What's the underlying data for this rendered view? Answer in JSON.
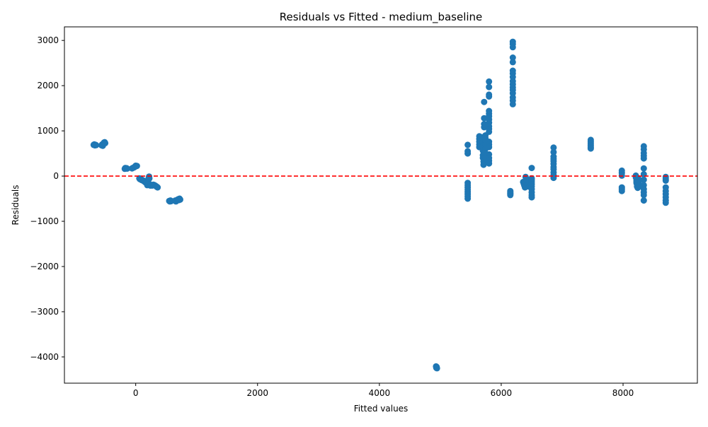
{
  "chart_data": {
    "type": "scatter",
    "title": "Residuals vs Fitted - medium_baseline",
    "xlabel": "Fitted values",
    "ylabel": "Residuals",
    "xlim": [
      -1170,
      9220
    ],
    "ylim": [
      -4580,
      3300
    ],
    "x_ticks": [
      0,
      2000,
      4000,
      6000,
      8000
    ],
    "x_tick_labels": [
      "0",
      "2000",
      "4000",
      "6000",
      "8000"
    ],
    "y_ticks": [
      -4000,
      -3000,
      -2000,
      -1000,
      0,
      1000,
      2000,
      3000
    ],
    "y_tick_labels": [
      "−4000",
      "−3000",
      "−2000",
      "−1000",
      "0",
      "1000",
      "2000",
      "3000"
    ],
    "grid": false,
    "legend": "none",
    "reference_line": {
      "y": 0,
      "color": "#ff0000",
      "style": "dashed"
    },
    "marker_color": "#1f77b4",
    "points": [
      [
        -690,
        690
      ],
      [
        -680,
        700
      ],
      [
        -670,
        680
      ],
      [
        -660,
        690
      ],
      [
        -650,
        685
      ],
      [
        -560,
        680
      ],
      [
        -550,
        700
      ],
      [
        -540,
        670
      ],
      [
        -530,
        720
      ],
      [
        -520,
        740
      ],
      [
        -510,
        750
      ],
      [
        -500,
        730
      ],
      [
        -180,
        160
      ],
      [
        -170,
        180
      ],
      [
        -160,
        170
      ],
      [
        -150,
        175
      ],
      [
        -140,
        165
      ],
      [
        -60,
        170
      ],
      [
        -50,
        180
      ],
      [
        -30,
        190
      ],
      [
        -20,
        200
      ],
      [
        -10,
        210
      ],
      [
        0,
        230
      ],
      [
        10,
        220
      ],
      [
        20,
        225
      ],
      [
        60,
        -50
      ],
      [
        70,
        -70
      ],
      [
        80,
        -60
      ],
      [
        90,
        -80
      ],
      [
        100,
        -90
      ],
      [
        110,
        -85
      ],
      [
        120,
        -100
      ],
      [
        140,
        -120
      ],
      [
        150,
        -110
      ],
      [
        160,
        -140
      ],
      [
        170,
        -150
      ],
      [
        180,
        -160
      ],
      [
        190,
        -200
      ],
      [
        200,
        -190
      ],
      [
        210,
        -150
      ],
      [
        215,
        -30
      ],
      [
        220,
        -10
      ],
      [
        225,
        -50
      ],
      [
        230,
        -180
      ],
      [
        240,
        -210
      ],
      [
        250,
        -200
      ],
      [
        270,
        -210
      ],
      [
        290,
        -190
      ],
      [
        310,
        -200
      ],
      [
        330,
        -220
      ],
      [
        340,
        -230
      ],
      [
        350,
        -240
      ],
      [
        360,
        -250
      ],
      [
        550,
        -550
      ],
      [
        560,
        -560
      ],
      [
        570,
        -540
      ],
      [
        580,
        -555
      ],
      [
        650,
        -540
      ],
      [
        660,
        -560
      ],
      [
        670,
        -550
      ],
      [
        690,
        -520
      ],
      [
        700,
        -510
      ],
      [
        710,
        -530
      ],
      [
        720,
        -500
      ],
      [
        730,
        -520
      ],
      [
        4930,
        -4210
      ],
      [
        4935,
        -4240
      ],
      [
        4940,
        -4220
      ],
      [
        4945,
        -4250
      ],
      [
        5450,
        690
      ],
      [
        5450,
        550
      ],
      [
        5450,
        500
      ],
      [
        5450,
        -150
      ],
      [
        5450,
        -200
      ],
      [
        5450,
        -250
      ],
      [
        5450,
        -300
      ],
      [
        5450,
        -350
      ],
      [
        5450,
        -400
      ],
      [
        5450,
        -450
      ],
      [
        5450,
        -500
      ],
      [
        5640,
        880
      ],
      [
        5640,
        820
      ],
      [
        5640,
        760
      ],
      [
        5640,
        700
      ],
      [
        5640,
        640
      ],
      [
        5680,
        860
      ],
      [
        5690,
        800
      ],
      [
        5700,
        740
      ],
      [
        5700,
        660
      ],
      [
        5700,
        560
      ],
      [
        5700,
        460
      ],
      [
        5700,
        400
      ],
      [
        5710,
        320
      ],
      [
        5710,
        250
      ],
      [
        5720,
        1640
      ],
      [
        5720,
        1280
      ],
      [
        5720,
        1150
      ],
      [
        5720,
        1080
      ],
      [
        5740,
        900
      ],
      [
        5740,
        840
      ],
      [
        5740,
        780
      ],
      [
        5740,
        700
      ],
      [
        5740,
        600
      ],
      [
        5740,
        500
      ],
      [
        5740,
        420
      ],
      [
        5800,
        2090
      ],
      [
        5800,
        1970
      ],
      [
        5800,
        1800
      ],
      [
        5800,
        1760
      ],
      [
        5800,
        1440
      ],
      [
        5800,
        1380
      ],
      [
        5800,
        1320
      ],
      [
        5800,
        1250
      ],
      [
        5800,
        1180
      ],
      [
        5800,
        1100
      ],
      [
        5800,
        1040
      ],
      [
        5800,
        980
      ],
      [
        5800,
        760
      ],
      [
        5800,
        700
      ],
      [
        5800,
        640
      ],
      [
        5800,
        480
      ],
      [
        5800,
        400
      ],
      [
        5800,
        340
      ],
      [
        5800,
        280
      ],
      [
        6150,
        -330
      ],
      [
        6150,
        -360
      ],
      [
        6150,
        -380
      ],
      [
        6150,
        -400
      ],
      [
        6150,
        -420
      ],
      [
        6190,
        2970
      ],
      [
        6190,
        2920
      ],
      [
        6190,
        2850
      ],
      [
        6190,
        2620
      ],
      [
        6190,
        2520
      ],
      [
        6190,
        2330
      ],
      [
        6190,
        2270
      ],
      [
        6190,
        2190
      ],
      [
        6190,
        2100
      ],
      [
        6190,
        2030
      ],
      [
        6190,
        1960
      ],
      [
        6190,
        1900
      ],
      [
        6190,
        1830
      ],
      [
        6190,
        1740
      ],
      [
        6190,
        1670
      ],
      [
        6190,
        1590
      ],
      [
        6360,
        -130
      ],
      [
        6370,
        -170
      ],
      [
        6380,
        -210
      ],
      [
        6390,
        -250
      ],
      [
        6400,
        -20
      ],
      [
        6410,
        -60
      ],
      [
        6420,
        -100
      ],
      [
        6430,
        -150
      ],
      [
        6440,
        -190
      ],
      [
        6450,
        -230
      ],
      [
        6460,
        -180
      ],
      [
        6470,
        -140
      ],
      [
        6500,
        180
      ],
      [
        6500,
        -50
      ],
      [
        6500,
        -90
      ],
      [
        6500,
        -130
      ],
      [
        6500,
        -180
      ],
      [
        6500,
        -230
      ],
      [
        6500,
        -290
      ],
      [
        6500,
        -360
      ],
      [
        6500,
        -420
      ],
      [
        6500,
        -470
      ],
      [
        6860,
        630
      ],
      [
        6860,
        530
      ],
      [
        6860,
        430
      ],
      [
        6860,
        380
      ],
      [
        6860,
        330
      ],
      [
        6860,
        270
      ],
      [
        6860,
        200
      ],
      [
        6860,
        150
      ],
      [
        6860,
        80
      ],
      [
        6860,
        20
      ],
      [
        6860,
        -40
      ],
      [
        7470,
        800
      ],
      [
        7470,
        760
      ],
      [
        7470,
        720
      ],
      [
        7470,
        680
      ],
      [
        7470,
        640
      ],
      [
        7470,
        610
      ],
      [
        7980,
        120
      ],
      [
        7980,
        70
      ],
      [
        7980,
        10
      ],
      [
        7980,
        -250
      ],
      [
        7980,
        -290
      ],
      [
        7980,
        -330
      ],
      [
        8210,
        10
      ],
      [
        8210,
        -30
      ],
      [
        8220,
        -70
      ],
      [
        8220,
        -110
      ],
      [
        8220,
        -150
      ],
      [
        8230,
        -190
      ],
      [
        8230,
        -230
      ],
      [
        8240,
        -260
      ],
      [
        8250,
        -50
      ],
      [
        8260,
        -120
      ],
      [
        8270,
        -200
      ],
      [
        8340,
        660
      ],
      [
        8340,
        590
      ],
      [
        8340,
        510
      ],
      [
        8340,
        450
      ],
      [
        8340,
        390
      ],
      [
        8340,
        170
      ],
      [
        8340,
        40
      ],
      [
        8340,
        -80
      ],
      [
        8340,
        -200
      ],
      [
        8340,
        -290
      ],
      [
        8340,
        -360
      ],
      [
        8340,
        -420
      ],
      [
        8340,
        -540
      ],
      [
        8700,
        -20
      ],
      [
        8700,
        -60
      ],
      [
        8700,
        -100
      ],
      [
        8700,
        -250
      ],
      [
        8700,
        -330
      ],
      [
        8700,
        -400
      ],
      [
        8700,
        -470
      ],
      [
        8700,
        -540
      ],
      [
        8700,
        -590
      ]
    ]
  }
}
